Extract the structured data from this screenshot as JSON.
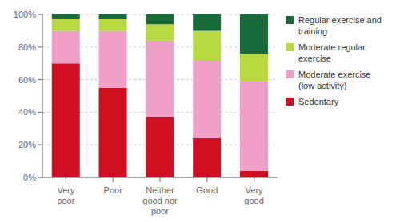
{
  "chart_data": {
    "type": "bar",
    "stacked": true,
    "categories": [
      "Very\npoor",
      "Poor",
      "Neither\ngood nor\npoor",
      "Good",
      "Very\ngood"
    ],
    "series": [
      {
        "name": "Sedentary",
        "color": "#d01020",
        "values": [
          70,
          55,
          37,
          24,
          4
        ]
      },
      {
        "name": "Moderate exercise\n(low activity)",
        "color": "#f0a0c8",
        "values": [
          20,
          35,
          47,
          48,
          55
        ]
      },
      {
        "name": "Moderate regular\nexercise",
        "color": "#b8d840",
        "values": [
          7,
          7,
          10,
          18,
          17
        ]
      },
      {
        "name": "Regular exercise and\ntraining",
        "color": "#1a6b3a",
        "values": [
          3,
          3,
          6,
          10,
          24
        ]
      }
    ],
    "ylim": [
      0,
      100
    ],
    "yticks": [
      {
        "value": 0,
        "label": "0%"
      },
      {
        "value": 20,
        "label": "20%"
      },
      {
        "value": 40,
        "label": "40%"
      },
      {
        "value": 60,
        "label": "60%"
      },
      {
        "value": 80,
        "label": "80%"
      },
      {
        "value": 100,
        "label": "100%"
      }
    ],
    "grid": true,
    "legend": "right"
  }
}
